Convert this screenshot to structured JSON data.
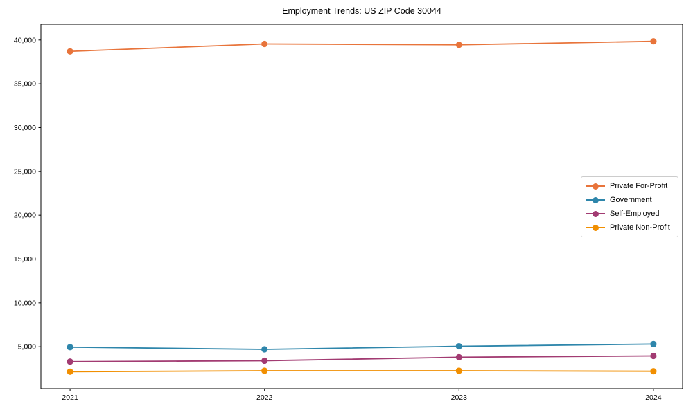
{
  "chart_data": {
    "type": "line",
    "title": "Employment Trends: US ZIP Code 30044",
    "x": [
      2021,
      2022,
      2023,
      2024
    ],
    "x_tick_labels": [
      "2021",
      "2022",
      "2023",
      "2024"
    ],
    "y_ticks": [
      5000,
      10000,
      15000,
      20000,
      25000,
      30000,
      35000,
      40000
    ],
    "y_tick_labels": [
      "5,000",
      "10,000",
      "15,000",
      "20,000",
      "25,000",
      "30,000",
      "35,000",
      "40,000"
    ],
    "xlim": [
      2020.85,
      2024.15
    ],
    "ylim": [
      200,
      41800
    ],
    "grid": false,
    "legend_position": "right-middle",
    "series": [
      {
        "name": "Private For-Profit",
        "color": "#E8743B",
        "values": [
          38700,
          39550,
          39450,
          39850
        ]
      },
      {
        "name": "Government",
        "color": "#2E86AB",
        "values": [
          4950,
          4700,
          5050,
          5300
        ]
      },
      {
        "name": "Self-Employed",
        "color": "#A23B72",
        "values": [
          3300,
          3400,
          3800,
          3950
        ]
      },
      {
        "name": "Private Non-Profit",
        "color": "#F18F01",
        "values": [
          2150,
          2250,
          2250,
          2200
        ]
      }
    ]
  }
}
